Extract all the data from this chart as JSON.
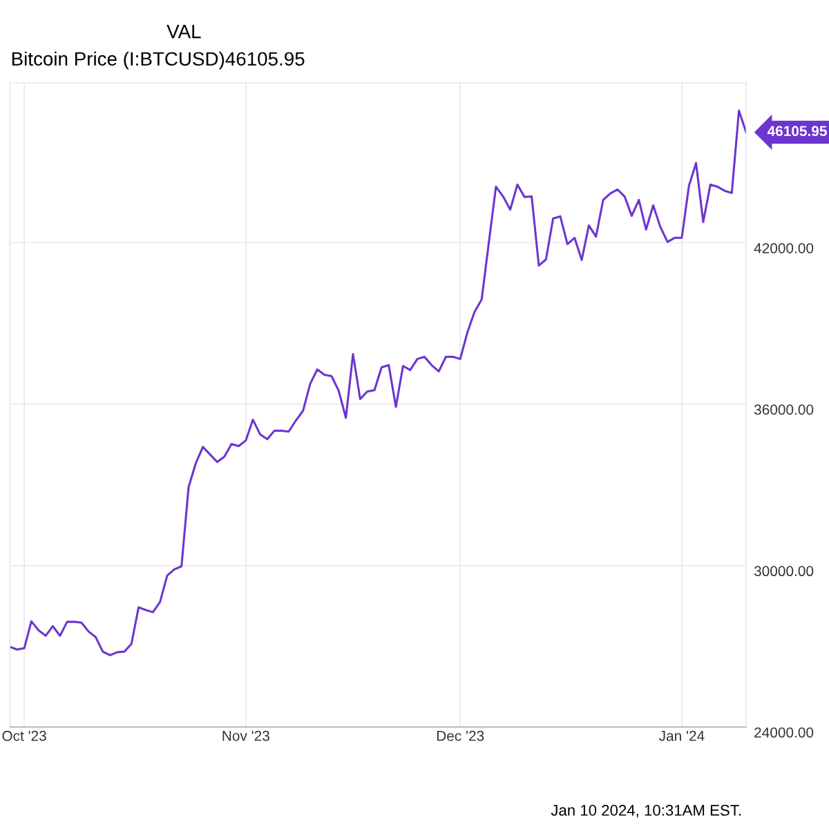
{
  "chart_data": {
    "type": "line",
    "title": "Bitcoin Price (I:BTCUSD)46105.95",
    "x": [
      "2023-09-29",
      "2023-09-30",
      "2023-10-01",
      "2023-10-02",
      "2023-10-03",
      "2023-10-04",
      "2023-10-05",
      "2023-10-06",
      "2023-10-07",
      "2023-10-08",
      "2023-10-09",
      "2023-10-10",
      "2023-10-11",
      "2023-10-12",
      "2023-10-13",
      "2023-10-14",
      "2023-10-15",
      "2023-10-16",
      "2023-10-17",
      "2023-10-18",
      "2023-10-19",
      "2023-10-20",
      "2023-10-21",
      "2023-10-22",
      "2023-10-23",
      "2023-10-24",
      "2023-10-25",
      "2023-10-26",
      "2023-10-27",
      "2023-10-28",
      "2023-10-29",
      "2023-10-30",
      "2023-10-31",
      "2023-11-01",
      "2023-11-02",
      "2023-11-03",
      "2023-11-04",
      "2023-11-05",
      "2023-11-06",
      "2023-11-07",
      "2023-11-08",
      "2023-11-09",
      "2023-11-10",
      "2023-11-11",
      "2023-11-12",
      "2023-11-13",
      "2023-11-14",
      "2023-11-15",
      "2023-11-16",
      "2023-11-17",
      "2023-11-18",
      "2023-11-19",
      "2023-11-20",
      "2023-11-21",
      "2023-11-22",
      "2023-11-23",
      "2023-11-24",
      "2023-11-25",
      "2023-11-26",
      "2023-11-27",
      "2023-11-28",
      "2023-11-29",
      "2023-11-30",
      "2023-12-01",
      "2023-12-02",
      "2023-12-03",
      "2023-12-04",
      "2023-12-05",
      "2023-12-06",
      "2023-12-07",
      "2023-12-08",
      "2023-12-09",
      "2023-12-10",
      "2023-12-11",
      "2023-12-12",
      "2023-12-13",
      "2023-12-14",
      "2023-12-15",
      "2023-12-16",
      "2023-12-17",
      "2023-12-18",
      "2023-12-19",
      "2023-12-20",
      "2023-12-21",
      "2023-12-22",
      "2023-12-23",
      "2023-12-24",
      "2023-12-25",
      "2023-12-26",
      "2023-12-27",
      "2023-12-28",
      "2023-12-29",
      "2023-12-30",
      "2023-12-31",
      "2024-01-01",
      "2024-01-02",
      "2024-01-03",
      "2024-01-04",
      "2024-01-05",
      "2024-01-06",
      "2024-01-07",
      "2024-01-08",
      "2024-01-09",
      "2024-01-10"
    ],
    "series": [
      {
        "color": "#6c35d0",
        "values": [
          26980,
          26880,
          26930,
          27930,
          27600,
          27390,
          27750,
          27390,
          27910,
          27910,
          27880,
          27550,
          27340,
          26800,
          26670,
          26780,
          26800,
          27090,
          28450,
          28350,
          28270,
          28650,
          29630,
          29860,
          29970,
          32920,
          33800,
          34410,
          34130,
          33850,
          34050,
          34520,
          34440,
          34650,
          35420,
          34880,
          34700,
          35010,
          35010,
          34980,
          35390,
          35750,
          36750,
          37290,
          37090,
          37040,
          36500,
          35490,
          37860,
          36190,
          36470,
          36520,
          37370,
          37450,
          35900,
          37420,
          37270,
          37680,
          37760,
          37450,
          37220,
          37760,
          37760,
          37680,
          38660,
          39430,
          39890,
          42000,
          44080,
          43720,
          43230,
          44160,
          43700,
          43720,
          41150,
          41380,
          42900,
          42980,
          41950,
          42180,
          41360,
          42640,
          42230,
          43590,
          43830,
          43980,
          43720,
          43000,
          43590,
          42490,
          43390,
          42590,
          42030,
          42180,
          42180,
          44110,
          44960,
          42770,
          44160,
          44080,
          43930,
          43850,
          46910,
          46105.95
        ]
      }
    ],
    "xlim": [
      "2023-09-29",
      "2024-01-10"
    ],
    "xticks": [
      {
        "value": "2023-10-01",
        "label": "Oct '23"
      },
      {
        "value": "2023-11-01",
        "label": "Nov '23"
      },
      {
        "value": "2023-12-01",
        "label": "Dec '23"
      },
      {
        "value": "2024-01-01",
        "label": "Jan '24"
      }
    ],
    "ylim": [
      24000,
      47940
    ],
    "yticks": [
      {
        "value": 24000,
        "label": "24000.00"
      },
      {
        "value": 30000,
        "label": "30000.00"
      },
      {
        "value": 36000,
        "label": "36000.00"
      },
      {
        "value": 42000,
        "label": "42000.00"
      }
    ],
    "grid": true,
    "marker": "none",
    "line_style": "solid",
    "annotations": [
      "VAL",
      "Jan 10 2024, 10:31AM EST.",
      {
        "text": "46105.95",
        "x": "2024-01-10",
        "y": 46105.95
      }
    ]
  }
}
